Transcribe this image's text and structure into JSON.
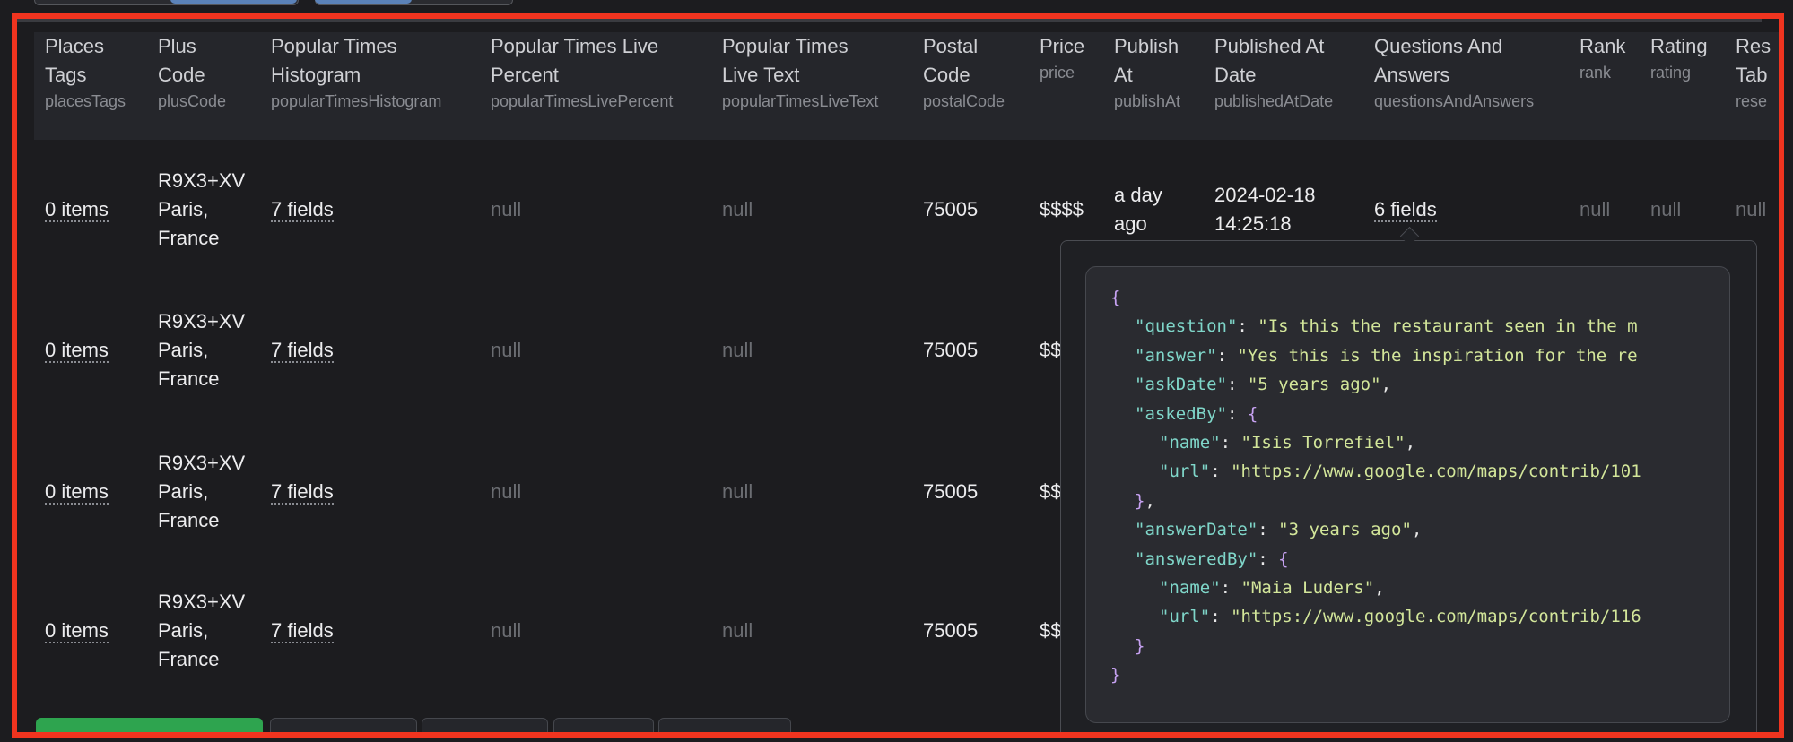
{
  "table": {
    "columns": [
      {
        "title": [
          "Places",
          "Tags"
        ],
        "key": "placesTags"
      },
      {
        "title": [
          "Plus",
          "Code"
        ],
        "key": "plusCode"
      },
      {
        "title": [
          "Popular Times",
          "Histogram"
        ],
        "key": "popularTimesHistogram"
      },
      {
        "title": [
          "Popular Times Live",
          "Percent"
        ],
        "key": "popularTimesLivePercent"
      },
      {
        "title": [
          "Popular Times",
          "Live Text"
        ],
        "key": "popularTimesLiveText"
      },
      {
        "title": [
          "Postal",
          "Code"
        ],
        "key": "postalCode"
      },
      {
        "title": [
          "Price"
        ],
        "key": "price"
      },
      {
        "title": [
          "Publish",
          "At"
        ],
        "key": "publishAt"
      },
      {
        "title": [
          "Published At",
          "Date"
        ],
        "key": "publishedAtDate"
      },
      {
        "title": [
          "Questions And",
          "Answers"
        ],
        "key": "questionsAndAnswers"
      },
      {
        "title": [
          "Rank"
        ],
        "key": "rank"
      },
      {
        "title": [
          "Rating"
        ],
        "key": "rating"
      },
      {
        "title": [
          "Res",
          "Tab"
        ],
        "key": "rese"
      }
    ],
    "rows": [
      [
        "0 items",
        [
          "R9X3+XV",
          "Paris,",
          "France"
        ],
        "7 fields",
        "null",
        "null",
        "75005",
        "$$$$",
        [
          "a day",
          "ago"
        ],
        [
          "2024-02-18",
          "14:25:18"
        ],
        "6 fields",
        "null",
        "null",
        "null"
      ],
      [
        "0 items",
        [
          "R9X3+XV",
          "Paris,",
          "France"
        ],
        "7 fields",
        "null",
        "null",
        "75005",
        "$$"
      ],
      [
        "0 items",
        [
          "R9X3+XV",
          "Paris,",
          "France"
        ],
        "7 fields",
        "null",
        "null",
        "75005",
        "$$"
      ],
      [
        "0 items",
        [
          "R9X3+XV",
          "Paris,",
          "France"
        ],
        "7 fields",
        "null",
        "null",
        "75005",
        "$$"
      ]
    ]
  },
  "tooltip": {
    "lines": [
      [
        "{"
      ],
      [
        "\"question\"",
        ": ",
        "\"Is this the restaurant seen in the m"
      ],
      [
        "\"answer\"",
        ": ",
        "\"Yes this is the inspiration for the re"
      ],
      [
        "\"askDate\"",
        ": ",
        "\"5 years ago\"",
        ","
      ],
      [
        "\"askedBy\"",
        ": ",
        "{"
      ],
      [
        "\"name\"",
        ": ",
        "\"Isis Torrefiel\"",
        ","
      ],
      [
        "\"url\"",
        ": ",
        "\"https://www.google.com/maps/contrib/101"
      ],
      [
        "}",
        ","
      ],
      [
        "\"answerDate\"",
        ": ",
        "\"3 years ago\"",
        ","
      ],
      [
        "\"answeredBy\"",
        ": ",
        "{"
      ],
      [
        "\"name\"",
        ": ",
        "\"Maia Luders\"",
        ","
      ],
      [
        "\"url\"",
        ": ",
        "\"https://www.google.com/maps/contrib/116"
      ],
      [
        "}"
      ],
      [
        "}"
      ]
    ]
  }
}
